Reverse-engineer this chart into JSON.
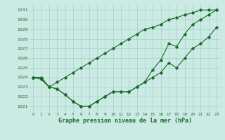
{
  "xlabel": "Graphe pression niveau de la mer (hPa)",
  "bg_color": "#cceae4",
  "grid_color": "#aad4cc",
  "line_color": "#1a6b2a",
  "x": [
    0,
    1,
    2,
    3,
    4,
    5,
    6,
    7,
    8,
    9,
    10,
    11,
    12,
    13,
    14,
    15,
    16,
    17,
    18,
    19,
    20,
    21,
    22,
    23
  ],
  "line1": [
    1024,
    1024,
    1023,
    1023.5,
    1024,
    1024.5,
    1025,
    1025.5,
    1026,
    1026.5,
    1027,
    1027.5,
    1028,
    1028.5,
    1029,
    1029.2,
    1029.5,
    1030,
    1030.2,
    1030.5,
    1030.7,
    1031,
    1031,
    1031
  ],
  "line2": [
    1024,
    1023.8,
    1023,
    1022.8,
    1022.2,
    1021.5,
    1021,
    1021,
    1021.5,
    1022,
    1022.5,
    1022.5,
    1022.5,
    1023,
    1023.5,
    1024.8,
    1025.8,
    1027.5,
    1027.2,
    1028.5,
    1029.5,
    1030,
    1030.5,
    1031
  ],
  "line3": [
    1024,
    1023.8,
    1023,
    1022.8,
    1022.2,
    1021.5,
    1021,
    1021,
    1021.5,
    1022,
    1022.5,
    1022.5,
    1022.5,
    1023,
    1023.5,
    1024,
    1024.5,
    1025.5,
    1025,
    1026,
    1027,
    1027.5,
    1028.2,
    1029.2
  ],
  "ylim": [
    1020.4,
    1031.6
  ],
  "yticks": [
    1021,
    1022,
    1023,
    1024,
    1025,
    1026,
    1027,
    1028,
    1029,
    1030,
    1031
  ],
  "xlim": [
    -0.5,
    23.5
  ],
  "xticks": [
    0,
    1,
    2,
    3,
    4,
    5,
    6,
    7,
    8,
    9,
    10,
    11,
    12,
    13,
    14,
    15,
    16,
    17,
    18,
    19,
    20,
    21,
    22,
    23
  ]
}
